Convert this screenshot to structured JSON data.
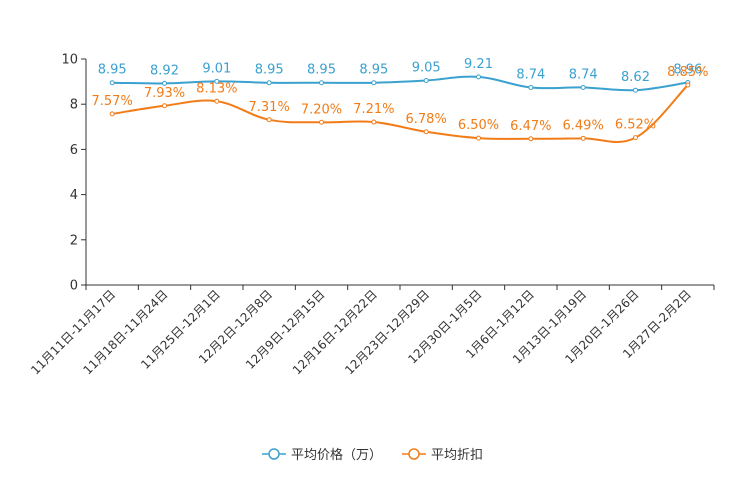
{
  "chart_data": {
    "type": "line",
    "categories": [
      "11月11日-11月17日",
      "11月18日-11月24日",
      "11月25日-12月1日",
      "12月2日-12月8日",
      "12月9日-12月15日",
      "12月16日-12月22日",
      "12月23日-12月29日",
      "12月30日-1月5日",
      "1月6日-1月12日",
      "1月13日-1月19日",
      "1月20日-1月26日",
      "1月27日-2月2日"
    ],
    "ylim": [
      0,
      10
    ],
    "yticks": [
      "0",
      "2",
      "4",
      "6",
      "8",
      "10"
    ],
    "legend_position": "bottom",
    "series": [
      {
        "name": "平均价格（万）",
        "color": "#3ba1cf",
        "values": [
          8.95,
          8.92,
          9.01,
          8.95,
          8.95,
          8.95,
          9.05,
          9.21,
          8.74,
          8.74,
          8.62,
          8.96
        ],
        "labels": [
          "8.95",
          "8.92",
          "9.01",
          "8.95",
          "8.95",
          "8.95",
          "9.05",
          "9.21",
          "8.74",
          "8.74",
          "8.62",
          "8.96"
        ]
      },
      {
        "name": "平均折扣",
        "color": "#f27c18",
        "values": [
          7.57,
          7.93,
          8.13,
          7.31,
          7.2,
          7.21,
          6.78,
          6.5,
          6.47,
          6.49,
          6.52,
          8.85
        ],
        "labels": [
          "7.57%",
          "7.93%",
          "8.13%",
          "7.31%",
          "7.20%",
          "7.21%",
          "6.78%",
          "6.50%",
          "6.47%",
          "6.49%",
          "6.52%",
          "8.85%"
        ]
      }
    ]
  }
}
